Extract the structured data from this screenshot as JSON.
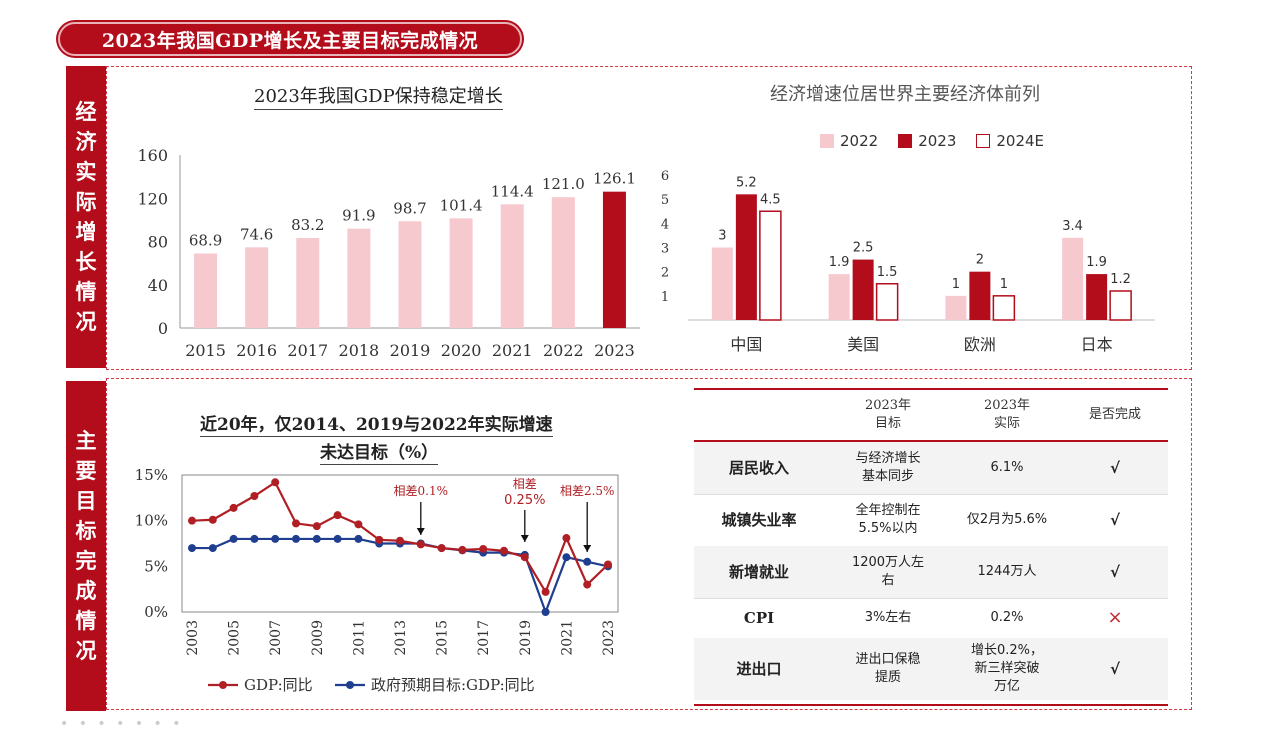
{
  "main_title": "2023年我国GDP增长及主要目标完成情况",
  "side_top": [
    "经",
    "济",
    "实",
    "际",
    "增",
    "长",
    "情",
    "况"
  ],
  "side_bottom": [
    "主",
    "要",
    "目",
    "标",
    "完",
    "成",
    "情",
    "况"
  ],
  "colors": {
    "dark_red": "#b30d1c",
    "light_pink": "#f6c9cf",
    "blue": "#1f3e8f",
    "line_red": "#b01f24"
  },
  "chart_data": [
    {
      "type": "bar",
      "title": "2023年我国GDP保持稳定增长",
      "categories": [
        "2015",
        "2016",
        "2017",
        "2018",
        "2019",
        "2020",
        "2021",
        "2022",
        "2023"
      ],
      "values": [
        68.9,
        74.6,
        83.2,
        91.9,
        98.7,
        101.4,
        114.4,
        121.0,
        126.1
      ],
      "value_labels": [
        "68.9",
        "74.6",
        "83.2",
        "91.9",
        "98.7",
        "101.4",
        "114.4",
        "121.0",
        "126.1"
      ],
      "highlight_last": true,
      "ylim": [
        0,
        160
      ],
      "yticks": [
        "0",
        "40",
        "80",
        "120",
        "160"
      ]
    },
    {
      "type": "bar",
      "title": "经济增速位居世界主要经济体前列",
      "categories": [
        "中国",
        "美国",
        "欧洲",
        "日本"
      ],
      "series": [
        {
          "name": "2022",
          "values": [
            3,
            1.9,
            1,
            3.4
          ],
          "labels": [
            "3",
            "1.9",
            "1",
            "3.4"
          ],
          "color": "#f6c9cf"
        },
        {
          "name": "2023",
          "values": [
            5.2,
            2.5,
            2,
            1.9
          ],
          "labels": [
            "5.2",
            "2.5",
            "2",
            "1.9"
          ],
          "color": "#b30d1c"
        },
        {
          "name": "2024E",
          "values": [
            4.5,
            1.5,
            1,
            1.2
          ],
          "labels": [
            "4.5",
            "1.5",
            "1",
            "1.2"
          ],
          "color": "#ffffff"
        }
      ],
      "ylim": [
        0,
        6
      ],
      "yticks": [
        "1",
        "2",
        "3",
        "4",
        "5",
        "6"
      ]
    },
    {
      "type": "line",
      "title_line1": "近20年，仅2014、2019与2022年实际增速",
      "title_line2": "未达目标（%）",
      "x": [
        2003,
        2004,
        2005,
        2006,
        2007,
        2008,
        2009,
        2010,
        2011,
        2012,
        2013,
        2014,
        2015,
        2016,
        2017,
        2018,
        2019,
        2020,
        2021,
        2022,
        2023
      ],
      "xtick_labels": [
        "2003",
        "2005",
        "2007",
        "2009",
        "2011",
        "2013",
        "2015",
        "2017",
        "2019",
        "2021",
        "2023"
      ],
      "ylim": [
        0,
        15
      ],
      "yticks": [
        "0%",
        "5%",
        "10%",
        "15%"
      ],
      "series": [
        {
          "name": "GDP:同比",
          "color": "#b01f24",
          "values": [
            10.0,
            10.1,
            11.4,
            12.7,
            14.2,
            9.7,
            9.4,
            10.6,
            9.6,
            7.9,
            7.8,
            7.4,
            7.0,
            6.8,
            6.9,
            6.7,
            6.0,
            2.2,
            8.1,
            3.0,
            5.2
          ]
        },
        {
          "name": "政府预期目标:GDP:同比",
          "color": "#1f3e8f",
          "values": [
            7.0,
            7.0,
            8.0,
            8.0,
            8.0,
            8.0,
            8.0,
            8.0,
            8.0,
            7.5,
            7.5,
            7.5,
            7.0,
            6.75,
            6.5,
            6.5,
            6.25,
            0.0,
            6.0,
            5.5,
            5.0
          ]
        }
      ],
      "annotations": [
        {
          "text_line1": "相差0.1%",
          "text_line2": "",
          "x": 2014
        },
        {
          "text_line1": "相差",
          "text_line2": "0.25%",
          "x": 2019
        },
        {
          "text_line1": "相差2.5%",
          "text_line2": "",
          "x": 2022
        }
      ]
    }
  ],
  "table": {
    "headers": [
      [
        "",
        ""
      ],
      [
        "2023年",
        "目标"
      ],
      [
        "2023年",
        "实际"
      ],
      [
        "是否完成",
        ""
      ]
    ],
    "rows": [
      {
        "item": "居民收入",
        "target": [
          "与经济增长",
          "基本同步"
        ],
        "actual": [
          "6.1%"
        ],
        "done": "√"
      },
      {
        "item": "城镇失业率",
        "target": [
          "全年控制在",
          "5.5%以内"
        ],
        "actual": [
          "仅2月为5.6%"
        ],
        "done": "√"
      },
      {
        "item": "新增就业",
        "target": [
          "1200万人左",
          "右"
        ],
        "actual": [
          "1244万人"
        ],
        "done": "√"
      },
      {
        "item": "CPI",
        "target": [
          "3%左右"
        ],
        "actual": [
          "0.2%"
        ],
        "done": "×"
      },
      {
        "item": "进出口",
        "target": [
          "进出口保稳",
          "提质"
        ],
        "actual": [
          "增长0.2%，",
          "新三样突破",
          "万亿"
        ],
        "done": "√"
      }
    ]
  },
  "footer_dots": "• • • • • • •"
}
